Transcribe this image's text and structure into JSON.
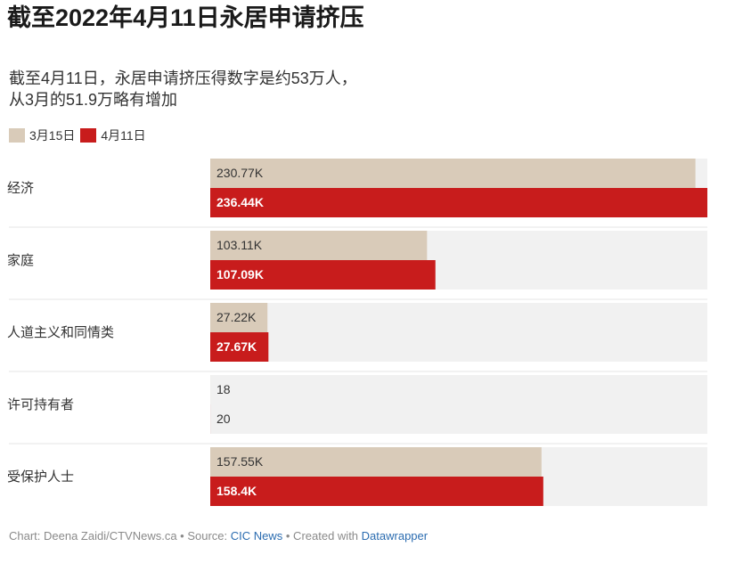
{
  "title": "截至2022年4月11日永居申请挤压",
  "subtitle_line1": "截至4月11日，永居申请挤压得数字是约53万人，",
  "subtitle_line2": "从3月的51.9万略有增加",
  "legend": [
    {
      "label": "3月15日",
      "color": "#d9cbb9"
    },
    {
      "label": "4月11日",
      "color": "#c81c1c"
    }
  ],
  "chart_data": {
    "type": "bar",
    "orientation": "horizontal",
    "categories": [
      "经济",
      "家庭",
      "人道主义和同情类",
      "许可持有者",
      "受保护人士"
    ],
    "series": [
      {
        "name": "3月15日",
        "color": "#d9cbb9",
        "values": [
          230770,
          103110,
          27220,
          18,
          157550
        ],
        "labels": [
          "230.77K",
          "103.11K",
          "27.22K",
          "18",
          "157.55K"
        ]
      },
      {
        "name": "4月11日",
        "color": "#c81c1c",
        "values": [
          236440,
          107090,
          27670,
          20,
          158400
        ],
        "labels": [
          "236.44K",
          "107.09K",
          "27.67K",
          "20",
          "158.4K"
        ]
      }
    ],
    "xlim": [
      0,
      236440
    ],
    "track_color": "#f1f1f1"
  },
  "footer": {
    "prefix": "Chart: Deena Zaidi/CTVNews.ca • Source: ",
    "source": "CIC News",
    "middle": " • Created with ",
    "tool": "Datawrapper"
  }
}
